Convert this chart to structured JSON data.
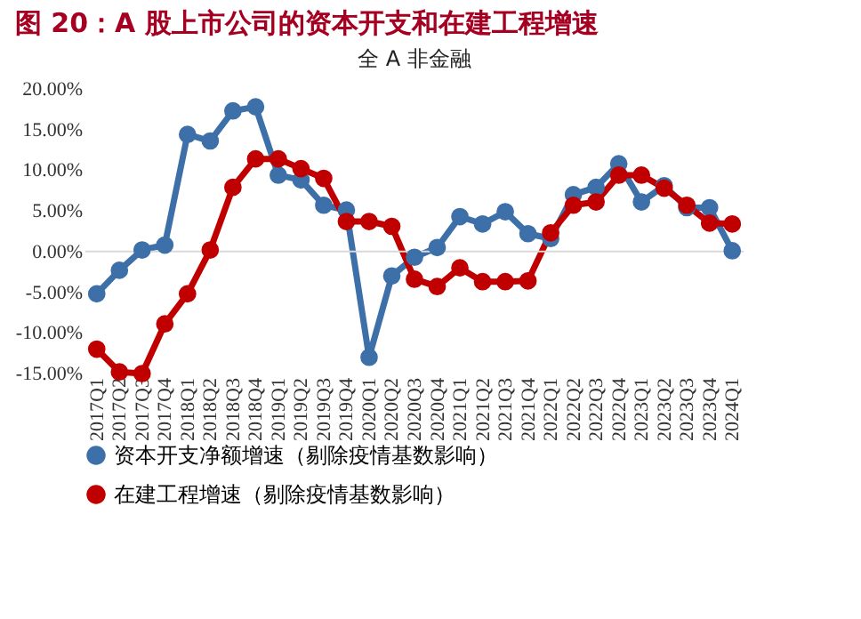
{
  "chart_data": {
    "type": "line",
    "title": "图 20：A 股上市公司的资本开支和在建工程增速",
    "subtitle": "全 A 非金融",
    "categories": [
      "2017Q1",
      "2017Q2",
      "2017Q3",
      "2017Q4",
      "2018Q1",
      "2018Q2",
      "2018Q3",
      "2018Q4",
      "2019Q1",
      "2019Q2",
      "2019Q3",
      "2019Q4",
      "2020Q1",
      "2020Q2",
      "2020Q3",
      "2020Q4",
      "2021Q1",
      "2021Q2",
      "2021Q3",
      "2021Q4",
      "2022Q1",
      "2022Q2",
      "2022Q3",
      "2022Q4",
      "2023Q1",
      "2023Q2",
      "2023Q3",
      "2023Q4",
      "2024Q1"
    ],
    "series": [
      {
        "name": "资本开支净额增速（剔除疫情基数影响）",
        "color": "#3d6fa8",
        "values": [
          -5.2,
          -2.3,
          0.2,
          0.8,
          14.4,
          13.6,
          17.3,
          17.8,
          9.4,
          8.8,
          5.7,
          5.1,
          -13.0,
          -3.0,
          -0.7,
          0.5,
          4.3,
          3.4,
          4.9,
          2.2,
          1.6,
          7.0,
          7.9,
          10.8,
          6.1,
          8.1,
          5.4,
          5.4,
          0.1
        ]
      },
      {
        "name": "在建工程增速（剔除疫情基数影响）",
        "color": "#c00000",
        "values": [
          -12.0,
          -14.8,
          -15.0,
          -8.9,
          -5.2,
          0.2,
          7.9,
          11.4,
          11.4,
          10.2,
          9.0,
          3.7,
          3.7,
          3.1,
          -3.4,
          -4.3,
          -2.0,
          -3.7,
          -3.7,
          -3.6,
          2.3,
          5.7,
          6.1,
          9.4,
          9.4,
          7.8,
          5.7,
          3.5,
          3.4
        ]
      }
    ],
    "ylim": [
      -15,
      20
    ],
    "yticks": [
      {
        "value": -15,
        "label": "-15.00%"
      },
      {
        "value": -10,
        "label": "-10.00%"
      },
      {
        "value": -5,
        "label": "-5.00%"
      },
      {
        "value": 0,
        "label": "0.00%"
      },
      {
        "value": 5,
        "label": "5.00%"
      },
      {
        "value": 10,
        "label": "10.00%"
      },
      {
        "value": 15,
        "label": "15.00%"
      },
      {
        "value": 20,
        "label": "20.00%"
      }
    ],
    "ref_lines": [
      {
        "axis": "y",
        "value": 0,
        "label": null,
        "color": "#d9d9d9"
      }
    ],
    "grid": false,
    "legend": "bottom",
    "marker": "circle",
    "line_style": "solid"
  }
}
